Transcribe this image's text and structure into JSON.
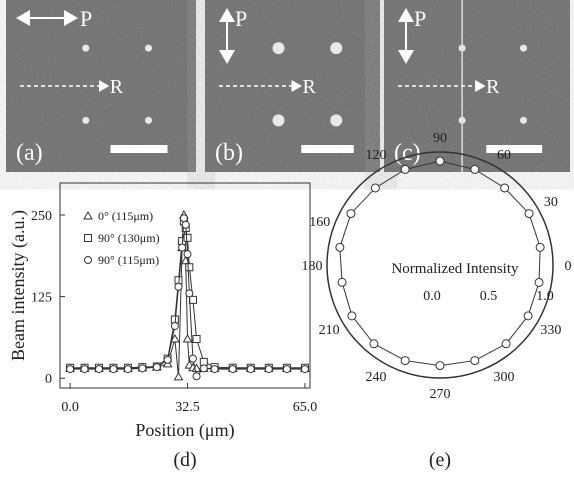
{
  "panels": [
    {
      "label": "(a)",
      "p": "P",
      "r": "R"
    },
    {
      "label": "(b)",
      "p": "P",
      "r": "R"
    },
    {
      "label": "(c)",
      "p": "P",
      "r": "R"
    }
  ],
  "chart_data": [
    {
      "type": "line",
      "caption": "(d)",
      "xlabel": "Position (μm)",
      "ylabel": "Beam intensity (a.u.)",
      "xlim": [
        -2.8,
        66.4
      ],
      "ylim": [
        -15,
        299
      ],
      "xticks": [
        {
          "value": 0,
          "label": "0.0"
        },
        32.5,
        {
          "value": 65,
          "label": "65.0"
        }
      ],
      "yticks": [
        0,
        125,
        250
      ],
      "x": [
        0,
        4,
        8,
        12,
        16,
        20,
        24,
        27,
        29,
        30,
        31,
        31.5,
        32,
        32.5,
        33,
        34,
        35,
        37,
        40,
        45,
        50,
        55,
        60,
        65
      ],
      "series": [
        {
          "name": "0° (115μm)",
          "marker": "triangle",
          "color": "#333333",
          "values": [
            15,
            15,
            15,
            15,
            15,
            16,
            17,
            22,
            60,
            2,
            200,
            250,
            180,
            60,
            20,
            16,
            15,
            15,
            15,
            15,
            15,
            15,
            15,
            15
          ]
        },
        {
          "name": "90° (130μm)",
          "marker": "square",
          "color": "#333333",
          "values": [
            16,
            16,
            16,
            16,
            16,
            17,
            18,
            30,
            90,
            150,
            210,
            240,
            230,
            215,
            170,
            120,
            60,
            25,
            17,
            16,
            16,
            16,
            16,
            16
          ]
        },
        {
          "name": "90° (115μm)",
          "marker": "circle",
          "color": "#333333",
          "values": [
            14,
            14,
            14,
            14,
            14,
            15,
            17,
            28,
            80,
            140,
            200,
            245,
            235,
            190,
            130,
            30,
            3,
            15,
            14,
            14,
            14,
            14,
            14,
            14
          ]
        }
      ]
    },
    {
      "type": "polar",
      "caption": "(e)",
      "annotation": "Normalized Intensity",
      "rlim": [
        0,
        1.0
      ],
      "rticks": [
        {
          "value": 0,
          "label": "0.0"
        },
        0.5,
        {
          "value": 1,
          "label": "1.0"
        }
      ],
      "thetaticks": [
        0,
        30,
        60,
        90,
        120,
        160,
        180,
        210,
        240,
        270,
        300,
        330
      ],
      "theta": [
        10,
        30,
        50,
        70,
        90,
        110,
        130,
        150,
        170,
        190,
        210,
        230,
        250,
        270,
        290,
        310,
        330,
        350
      ],
      "values": [
        0.9,
        0.91,
        0.89,
        0.9,
        0.92,
        0.9,
        0.89,
        0.91,
        0.9,
        0.88,
        0.9,
        0.91,
        0.9,
        0.89,
        0.9,
        0.91,
        0.9,
        0.89
      ]
    }
  ]
}
